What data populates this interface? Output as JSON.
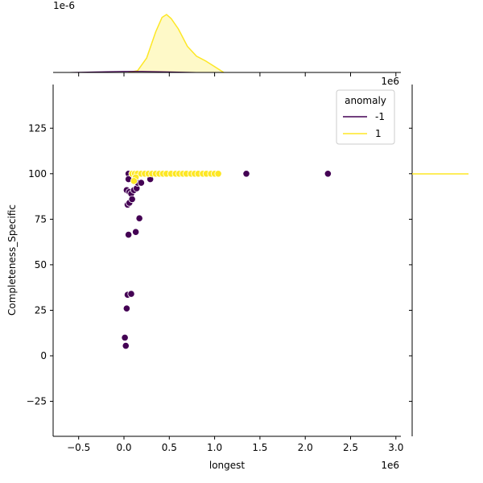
{
  "chart_data": {
    "type": "scatter",
    "subtype": "jointplot",
    "title": "",
    "xlabel": "longest",
    "ylabel": "Completeness_Specific",
    "x_offset_label": "1e6",
    "top_marginal_offset_label": "1e-6",
    "xlim": [
      -0.8,
      3.0
    ],
    "ylim": [
      -43,
      148
    ],
    "x_ticks": [
      -0.5,
      0.0,
      0.5,
      1.0,
      1.5,
      2.0,
      2.5,
      3.0
    ],
    "x_tick_labels": [
      "−0.5",
      "0.0",
      "0.5",
      "1.0",
      "1.5",
      "2.0",
      "2.5",
      "3.0"
    ],
    "y_ticks": [
      -25,
      0,
      25,
      50,
      75,
      100,
      125
    ],
    "y_tick_labels": [
      "−25",
      "0",
      "25",
      "50",
      "75",
      "100",
      "125"
    ],
    "grid": false,
    "legend": {
      "title": "anomaly",
      "position": "upper right",
      "entries": [
        {
          "label": "-1",
          "color": "#440154"
        },
        {
          "label": "1",
          "color": "#fde725"
        }
      ]
    },
    "series": [
      {
        "name": "-1",
        "color": "#440154",
        "x_unit": "1e6",
        "points": [
          [
            0.05,
            100
          ],
          [
            0.03,
            91
          ],
          [
            0.06,
            90
          ],
          [
            0.08,
            89
          ],
          [
            0.11,
            91
          ],
          [
            0.14,
            92
          ],
          [
            0.04,
            83
          ],
          [
            0.06,
            84
          ],
          [
            0.09,
            86
          ],
          [
            0.05,
            97
          ],
          [
            0.15,
            95
          ],
          [
            0.19,
            95
          ],
          [
            0.29,
            97
          ],
          [
            0.1,
            100
          ],
          [
            0.17,
            75.5
          ],
          [
            0.13,
            68
          ],
          [
            0.05,
            66.5
          ],
          [
            0.04,
            33.5
          ],
          [
            0.08,
            34
          ],
          [
            0.03,
            26
          ],
          [
            0.01,
            10
          ],
          [
            0.02,
            5.5
          ],
          [
            1.35,
            100
          ],
          [
            2.25,
            100
          ]
        ]
      },
      {
        "name": "1",
        "color": "#fde725",
        "x_unit": "1e6",
        "points": [
          [
            0.09,
            100
          ],
          [
            0.12,
            100
          ],
          [
            0.15,
            100
          ],
          [
            0.19,
            100
          ],
          [
            0.23,
            100
          ],
          [
            0.27,
            100
          ],
          [
            0.31,
            100
          ],
          [
            0.35,
            100
          ],
          [
            0.39,
            100
          ],
          [
            0.43,
            100
          ],
          [
            0.47,
            100
          ],
          [
            0.52,
            100
          ],
          [
            0.57,
            100
          ],
          [
            0.61,
            100
          ],
          [
            0.65,
            100
          ],
          [
            0.69,
            100
          ],
          [
            0.74,
            100
          ],
          [
            0.78,
            100
          ],
          [
            0.82,
            100
          ],
          [
            0.87,
            100
          ],
          [
            0.91,
            100
          ],
          [
            0.96,
            100
          ],
          [
            1.0,
            100
          ],
          [
            1.04,
            100
          ],
          [
            0.13,
            98
          ],
          [
            0.11,
            96
          ]
        ]
      }
    ],
    "marginal_x_kde": {
      "series": [
        {
          "name": "1",
          "color": "#fde725",
          "x": [
            0.05,
            0.15,
            0.25,
            0.35,
            0.42,
            0.47,
            0.52,
            0.6,
            0.7,
            0.8,
            0.9,
            1.0,
            1.1
          ],
          "density_rel": [
            0.0,
            0.03,
            0.25,
            0.7,
            0.95,
            1.0,
            0.93,
            0.75,
            0.45,
            0.28,
            0.2,
            0.1,
            0.0
          ]
        },
        {
          "name": "-1",
          "color": "#440154",
          "x": [
            -0.6,
            -0.3,
            0.0,
            0.2,
            0.5,
            0.8
          ],
          "density_rel": [
            0.0,
            0.01,
            0.02,
            0.02,
            0.01,
            0.0
          ]
        }
      ]
    },
    "marginal_y_kde": {
      "series": [
        {
          "name": "1",
          "color": "#fde725",
          "note": "spike at y=100",
          "y": 100
        }
      ]
    }
  }
}
